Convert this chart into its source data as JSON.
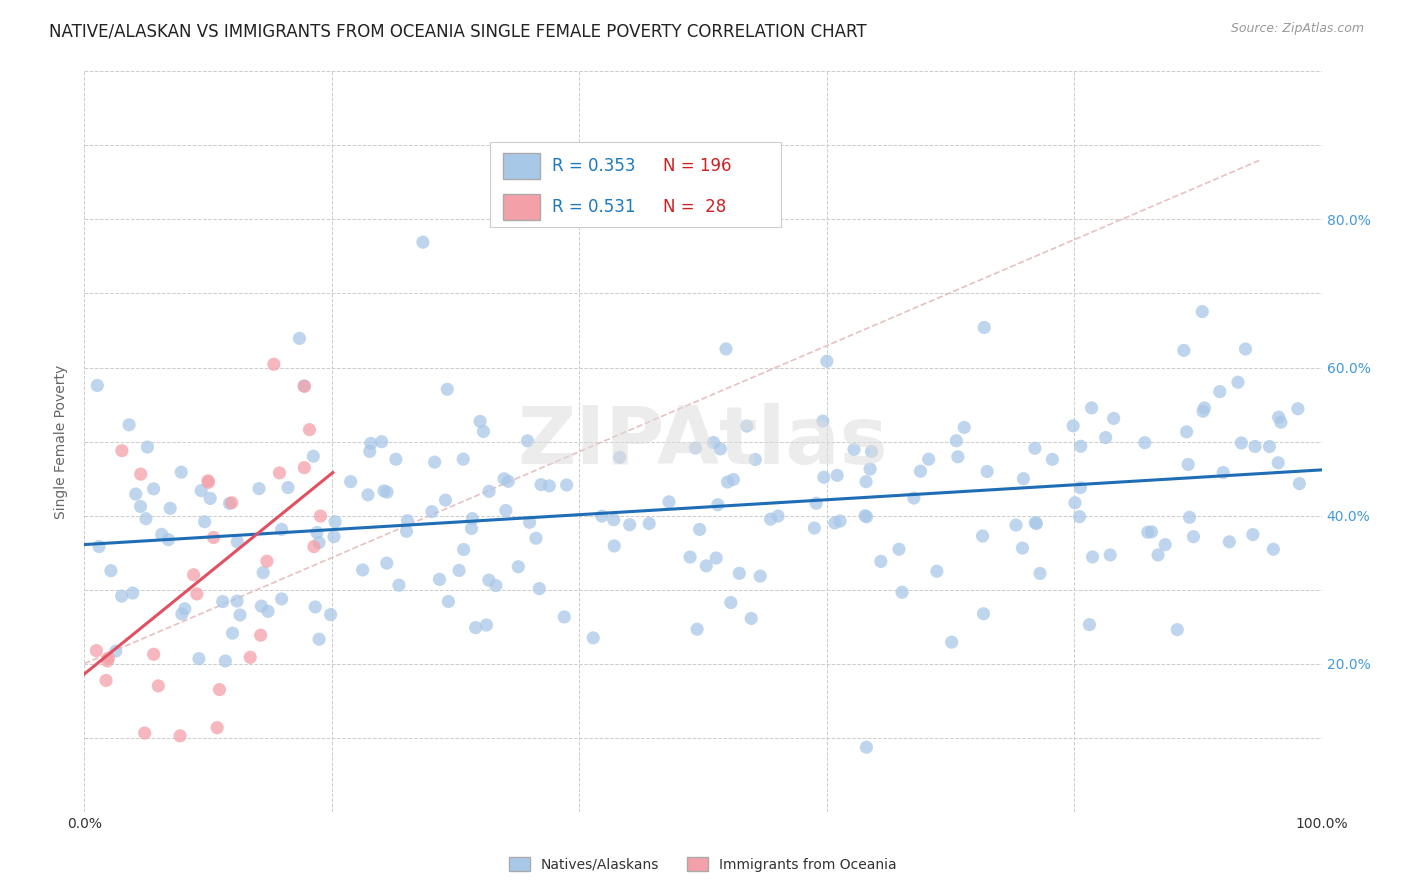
{
  "title": "NATIVE/ALASKAN VS IMMIGRANTS FROM OCEANIA SINGLE FEMALE POVERTY CORRELATION CHART",
  "source": "Source: ZipAtlas.com",
  "ylabel": "Single Female Poverty",
  "xlim": [
    0,
    1.0
  ],
  "ylim": [
    0,
    1.0
  ],
  "blue_R": 0.353,
  "blue_N": 196,
  "pink_R": 0.531,
  "pink_N": 28,
  "blue_color": "#a8c8e8",
  "pink_color": "#f4a0a8",
  "blue_line_color": "#1f6eb5",
  "pink_line_color": "#e05060",
  "diagonal_color": "#e8c0c0",
  "legend_label_blue": "Natives/Alaskans",
  "legend_label_pink": "Immigrants from Oceania",
  "title_fontsize": 12,
  "label_fontsize": 10,
  "tick_fontsize": 10,
  "watermark": "ZIPAtlas",
  "blue_seed": 42,
  "pink_seed": 7
}
